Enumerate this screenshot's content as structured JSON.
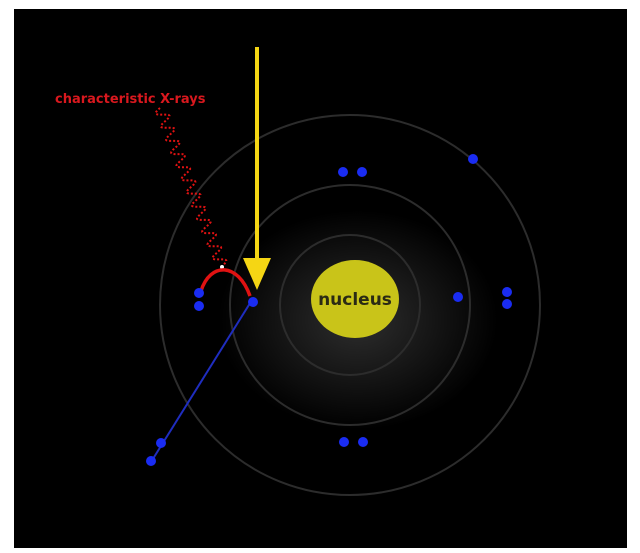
{
  "labels": {
    "nucleus": "nucleus",
    "xray": "characteristic X-rays"
  },
  "colors": {
    "background": "#000000",
    "nucleus": "#c9c419",
    "nucleus_text": "#2a2a14",
    "electron": "#1a2cf2",
    "incoming_ray": "#f5d614",
    "xray_photon": "#e01212",
    "xray_label": "#d9181e",
    "ejected_path": "#1f2dbf",
    "orbit": "#2c2c2c"
  },
  "icons": {
    "incoming": "down-arrow-icon",
    "xray": "wavy-line-icon",
    "transition": "curved-arc-icon"
  }
}
